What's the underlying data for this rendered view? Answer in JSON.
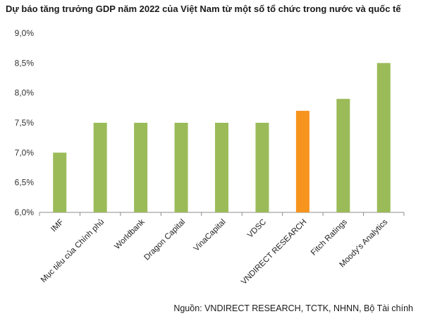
{
  "chart_data": {
    "type": "bar",
    "title": "Dự báo tăng trưởng GDP năm 2022 của Việt Nam từ một số tổ chức trong nước và quốc tế",
    "categories": [
      "IMF",
      "Mục tiêu của Chính phủ",
      "Worldbank",
      "Dragon Capital",
      "VinaCapital",
      "VDSC",
      "VNDIRECT RESEARCH",
      "Fitch Ratings",
      "Moody's Analytics"
    ],
    "values": [
      7.0,
      7.5,
      7.5,
      7.5,
      7.5,
      7.5,
      7.7,
      7.9,
      8.5
    ],
    "ylim": [
      6.0,
      9.0
    ],
    "yticks": [
      "6,0%",
      "6,5%",
      "7,0%",
      "7,5%",
      "8,0%",
      "8,5%",
      "9,0%"
    ],
    "colors": {
      "default": "#9bbb59",
      "highlight": "#f7941d"
    },
    "highlight_index": 6,
    "source": "Nguồn: VNDIRECT RESEARCH, TCTK, NHNN, Bộ Tài chính"
  }
}
